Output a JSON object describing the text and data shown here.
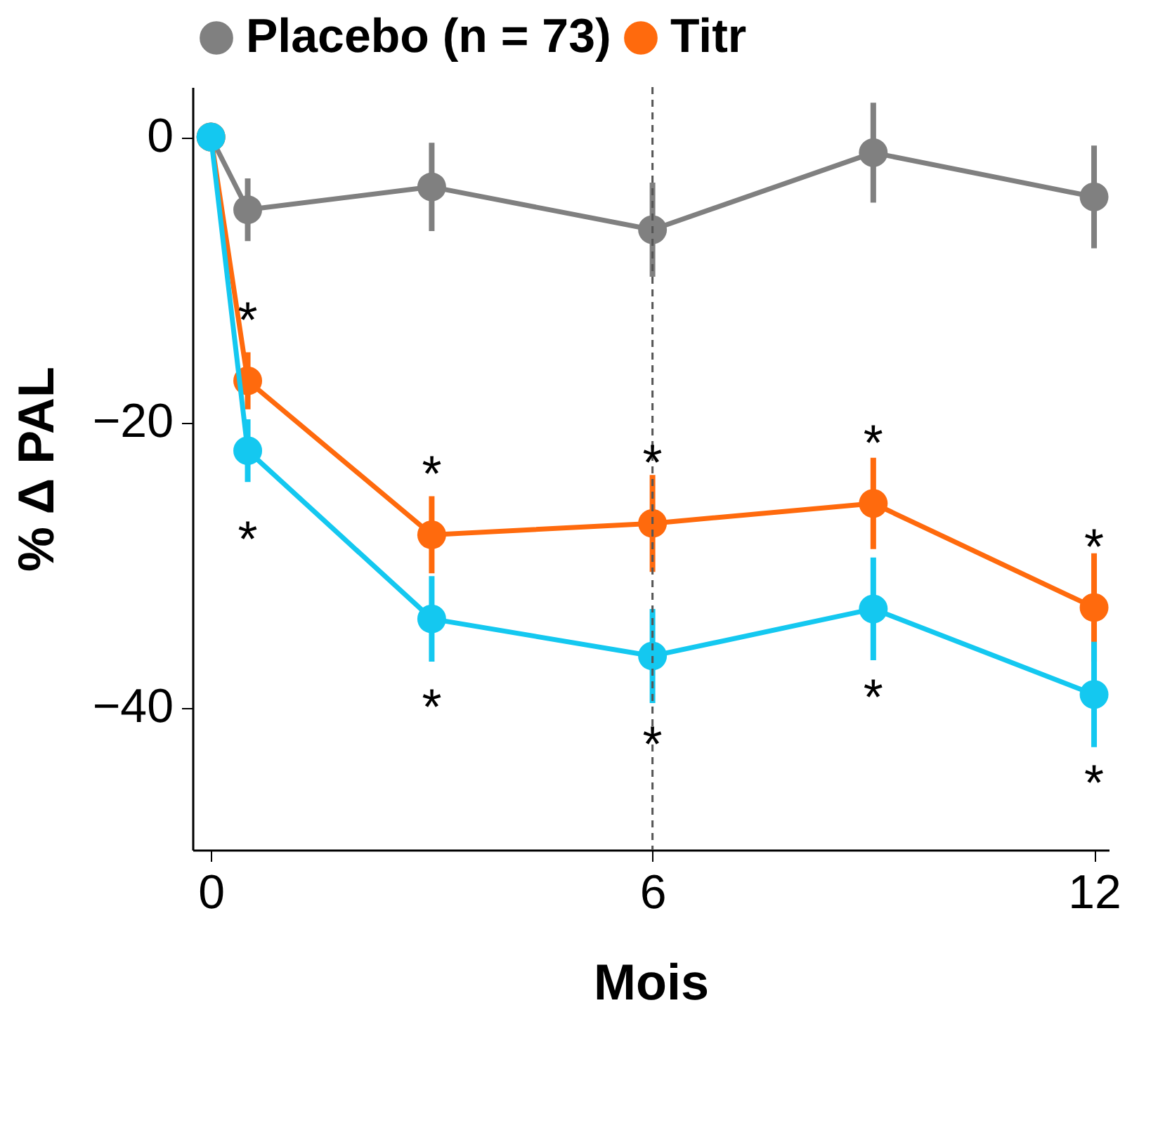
{
  "chart_data": {
    "type": "line",
    "xlabel": "Mois",
    "ylabel": "% Δ PAL",
    "x": [
      0,
      0.5,
      3,
      6,
      9,
      12
    ],
    "series": [
      {
        "name": "Placebo (n = 73)",
        "color": "#808080",
        "values": [
          0,
          -5.1,
          -3.5,
          -6.5,
          -1.1,
          -4.2
        ],
        "errors": [
          null,
          2.2,
          3.1,
          3.3,
          3.5,
          3.6
        ]
      },
      {
        "name": "Titr",
        "color": "#ff6a0d",
        "values": [
          0,
          -17.1,
          -27.9,
          -27.1,
          -25.7,
          -33
        ],
        "errors": [
          null,
          2,
          2.7,
          3.4,
          3.2,
          3.8
        ]
      },
      {
        "color": "#14c8f0",
        "values": [
          0,
          -22,
          -33.8,
          -36.4,
          -33.1,
          -39.1
        ],
        "errors": [
          null,
          2.2,
          3,
          3.3,
          3.6,
          3.7
        ]
      }
    ],
    "xlim": [
      -0.25,
      12.2
    ],
    "xticks": [
      0,
      6,
      12
    ],
    "ylim": [
      -50,
      3.5
    ],
    "yticks": [
      0,
      -20,
      -40
    ],
    "grid": false,
    "legend": "top",
    "marker": "circle",
    "line_style": "solid",
    "ref_lines": [
      {
        "axis": "x",
        "value": 6,
        "color": "#555555",
        "line_style": "dashed"
      }
    ],
    "annotations": [
      "*",
      "*",
      "*",
      "*",
      "*",
      "*",
      "*",
      "*",
      "*",
      "*"
    ]
  }
}
